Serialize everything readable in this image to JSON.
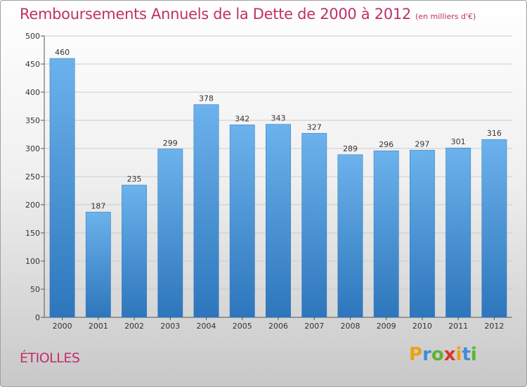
{
  "header": {
    "title": "Remboursements Annuels de la Dette de 2000 à 2012",
    "unit_note": "(en milliers d'€)"
  },
  "footer": {
    "commune": "ÉTIOLLES",
    "logo_letters": [
      "P",
      "r",
      "o",
      "x",
      "i",
      "t",
      "i"
    ],
    "logo_colors": [
      "#e8a317",
      "#3d8fd6",
      "#5cb531",
      "#d9342b",
      "#e8a317",
      "#3d8fd6",
      "#5cb531"
    ]
  },
  "colors": {
    "bar": "#3d8fd6",
    "bar_light": "#6cb2ec",
    "bar_dark": "#2e76bc",
    "title": "#c0306a",
    "grid": "#cccccc"
  },
  "chart_data": {
    "type": "bar",
    "categories": [
      "2000",
      "2001",
      "2002",
      "2003",
      "2004",
      "2005",
      "2006",
      "2007",
      "2008",
      "2009",
      "2010",
      "2011",
      "2012"
    ],
    "values": [
      460,
      187,
      235,
      299,
      378,
      342,
      343,
      327,
      289,
      296,
      297,
      301,
      316
    ],
    "ylim": [
      0,
      500
    ],
    "yticks": [
      0,
      50,
      100,
      150,
      200,
      250,
      300,
      350,
      400,
      450,
      500
    ],
    "grid": true,
    "data_labels": true
  }
}
